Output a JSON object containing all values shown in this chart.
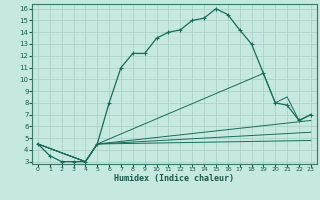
{
  "xlabel": "Humidex (Indice chaleur)",
  "background_color": "#c5e8e0",
  "grid_color": "#a8cec6",
  "line_color": "#1a6b5a",
  "spine_color": "#3a7a6a",
  "tick_color": "#1a5a4a",
  "xlim": [
    -0.5,
    23.5
  ],
  "ylim": [
    2.8,
    16.4
  ],
  "xticks": [
    0,
    1,
    2,
    3,
    4,
    5,
    6,
    7,
    8,
    9,
    10,
    11,
    12,
    13,
    14,
    15,
    16,
    17,
    18,
    19,
    20,
    21,
    22,
    23
  ],
  "yticks": [
    3,
    4,
    5,
    6,
    7,
    8,
    9,
    10,
    11,
    12,
    13,
    14,
    15,
    16
  ],
  "line1_x": [
    0,
    1,
    2,
    3,
    4,
    5,
    6,
    7,
    8,
    9,
    10,
    11,
    12,
    13,
    14,
    15,
    16,
    17,
    18,
    19,
    20,
    21,
    22,
    23
  ],
  "line1_y": [
    4.5,
    3.5,
    3.0,
    3.0,
    3.0,
    4.5,
    8.0,
    11.0,
    12.2,
    12.2,
    13.5,
    14.0,
    14.2,
    15.0,
    15.2,
    16.0,
    15.5,
    14.2,
    13.0,
    10.5,
    8.0,
    7.8,
    6.5,
    7.0
  ],
  "line2_x": [
    0,
    4,
    5,
    19,
    20,
    21,
    22,
    23
  ],
  "line2_y": [
    4.5,
    3.0,
    4.5,
    10.5,
    8.0,
    8.5,
    6.5,
    7.0
  ],
  "line3_x": [
    0,
    4,
    5,
    23
  ],
  "line3_y": [
    4.5,
    3.0,
    4.5,
    6.5
  ],
  "line4_x": [
    0,
    4,
    5,
    23
  ],
  "line4_y": [
    4.5,
    3.0,
    4.5,
    5.5
  ],
  "line5_x": [
    0,
    4,
    5,
    23
  ],
  "line5_y": [
    4.5,
    3.0,
    4.5,
    4.8
  ]
}
